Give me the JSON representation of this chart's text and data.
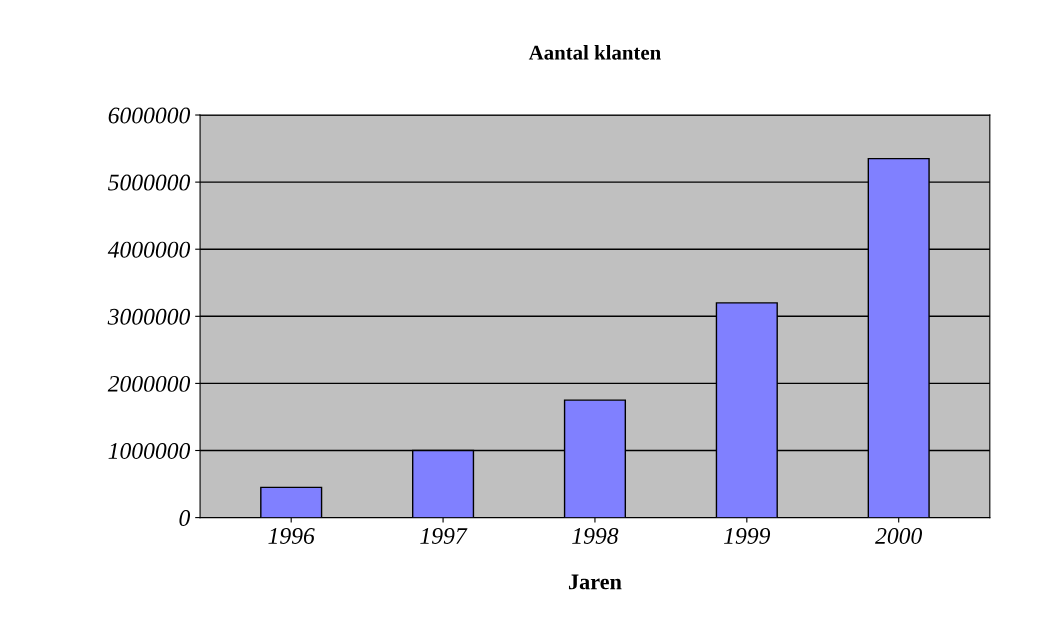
{
  "chart_data": {
    "type": "bar",
    "title": "Aantal klanten",
    "xlabel": "Jaren",
    "categories": [
      "1996",
      "1997",
      "1998",
      "1999",
      "2000"
    ],
    "values": [
      450000,
      1000000,
      1750000,
      3200000,
      5350000
    ],
    "color": "#8080ff",
    "ylim": [
      0,
      6000000
    ],
    "yticks": [
      0,
      1000000,
      2000000,
      3000000,
      4000000,
      5000000,
      6000000
    ],
    "grid": "y",
    "legend": false
  }
}
